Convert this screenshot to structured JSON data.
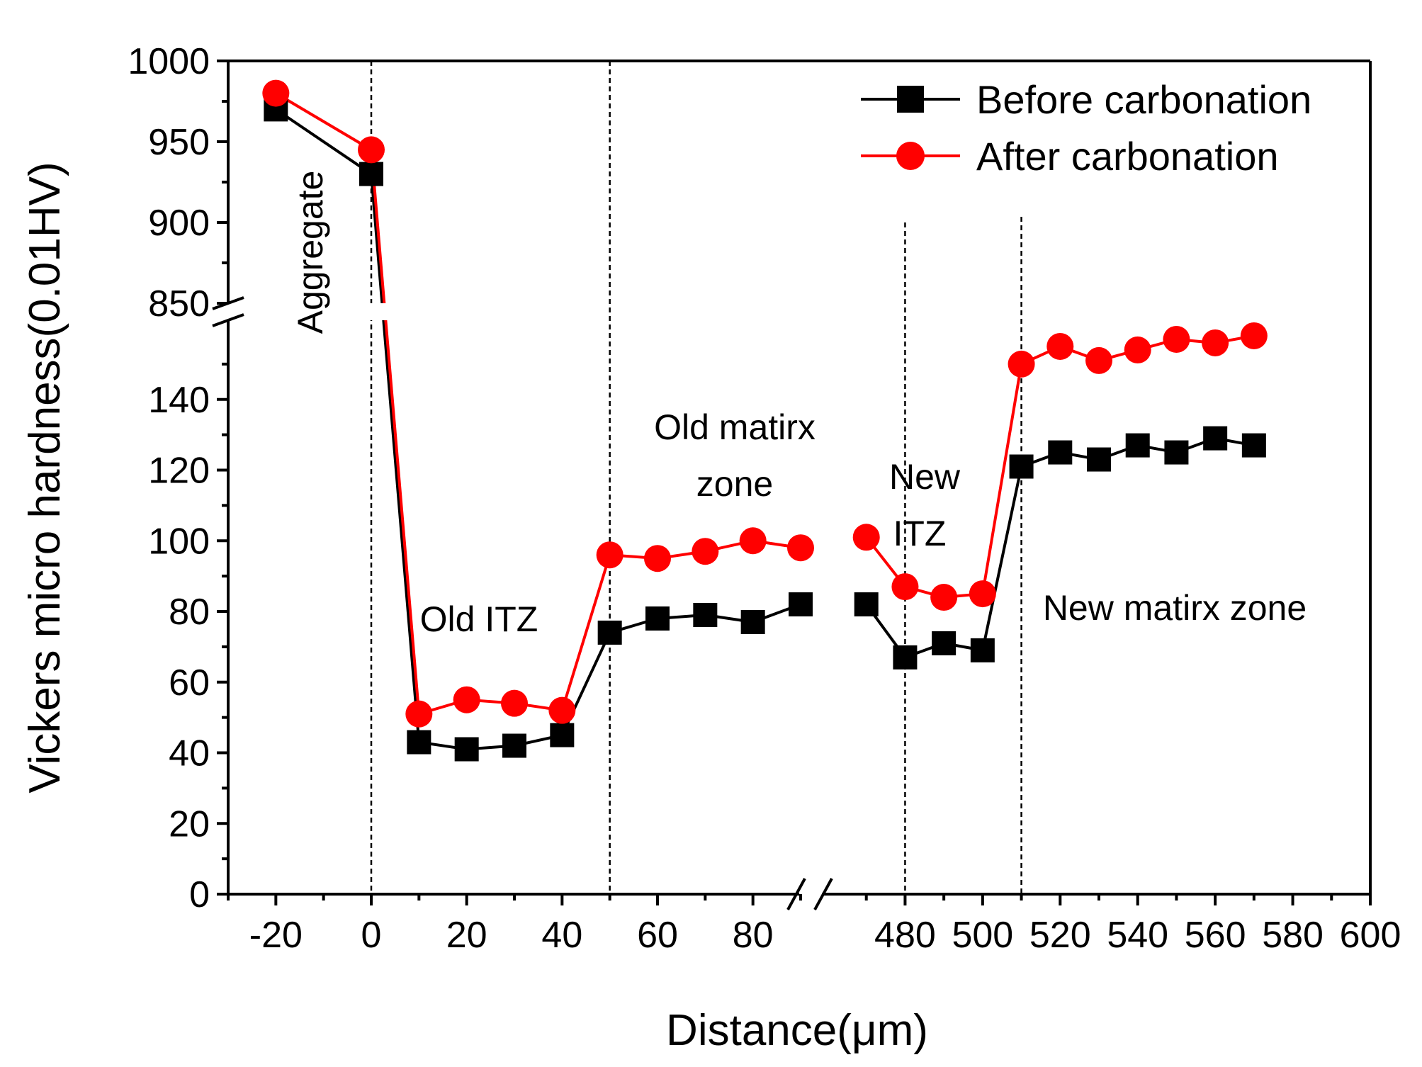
{
  "chart_data": {
    "type": "line",
    "title": "",
    "xlabel": "Distance(μm)",
    "ylabel": "Vickers micro hardness(0.01HV)",
    "x_axis": {
      "broken": true,
      "segments": [
        {
          "range": [
            -30,
            90
          ],
          "ticks": [
            -20,
            0,
            20,
            40,
            60,
            80
          ],
          "tick_labels": [
            "-20",
            "0",
            "20",
            "40",
            "60",
            "80"
          ]
        },
        {
          "range": [
            460,
            600
          ],
          "ticks": [
            480,
            500,
            520,
            540,
            560,
            580,
            600
          ],
          "tick_labels": [
            "480",
            "500",
            "520",
            "540",
            "560",
            "580",
            "600"
          ]
        }
      ]
    },
    "y_axis": {
      "broken": true,
      "segments": [
        {
          "range": [
            0,
            160
          ],
          "ticks": [
            0,
            20,
            40,
            60,
            80,
            100,
            120,
            140
          ],
          "tick_labels": [
            "0",
            "20",
            "40",
            "60",
            "80",
            "100",
            "120",
            "140"
          ]
        },
        {
          "range": [
            850,
            1000
          ],
          "ticks": [
            850,
            900,
            950,
            1000
          ],
          "tick_labels": [
            "850",
            "900",
            "950",
            "1000"
          ]
        }
      ]
    },
    "series": [
      {
        "name": "Before carbonation",
        "color": "#000000",
        "marker": "square",
        "x": [
          -20,
          0,
          10,
          20,
          30,
          40,
          50,
          60,
          70,
          80,
          90,
          470,
          480,
          490,
          500,
          510,
          520,
          530,
          540,
          550,
          560,
          570
        ],
        "values": [
          970,
          930,
          43,
          41,
          42,
          45,
          74,
          78,
          79,
          77,
          82,
          82,
          67,
          71,
          69,
          121,
          125,
          123,
          127,
          125,
          129,
          127
        ]
      },
      {
        "name": "After carbonation",
        "color": "#ff0000",
        "marker": "circle",
        "x": [
          -20,
          0,
          10,
          20,
          30,
          40,
          50,
          60,
          70,
          80,
          90,
          470,
          480,
          490,
          500,
          510,
          520,
          530,
          540,
          550,
          560,
          570
        ],
        "values": [
          980,
          945,
          51,
          55,
          54,
          52,
          96,
          95,
          97,
          100,
          98,
          101,
          87,
          84,
          85,
          150,
          155,
          151,
          154,
          157,
          156,
          158
        ]
      }
    ],
    "zone_lines_x": [
      0,
      50,
      480,
      510
    ],
    "annotations": [
      "Aggregate",
      "Old ITZ",
      "Old matirx",
      "zone",
      "New",
      "ITZ",
      "New matirx zone"
    ],
    "legend": {
      "position": "top-right",
      "entries": [
        "Before carbonation",
        "After carbonation"
      ]
    },
    "grid": false
  }
}
